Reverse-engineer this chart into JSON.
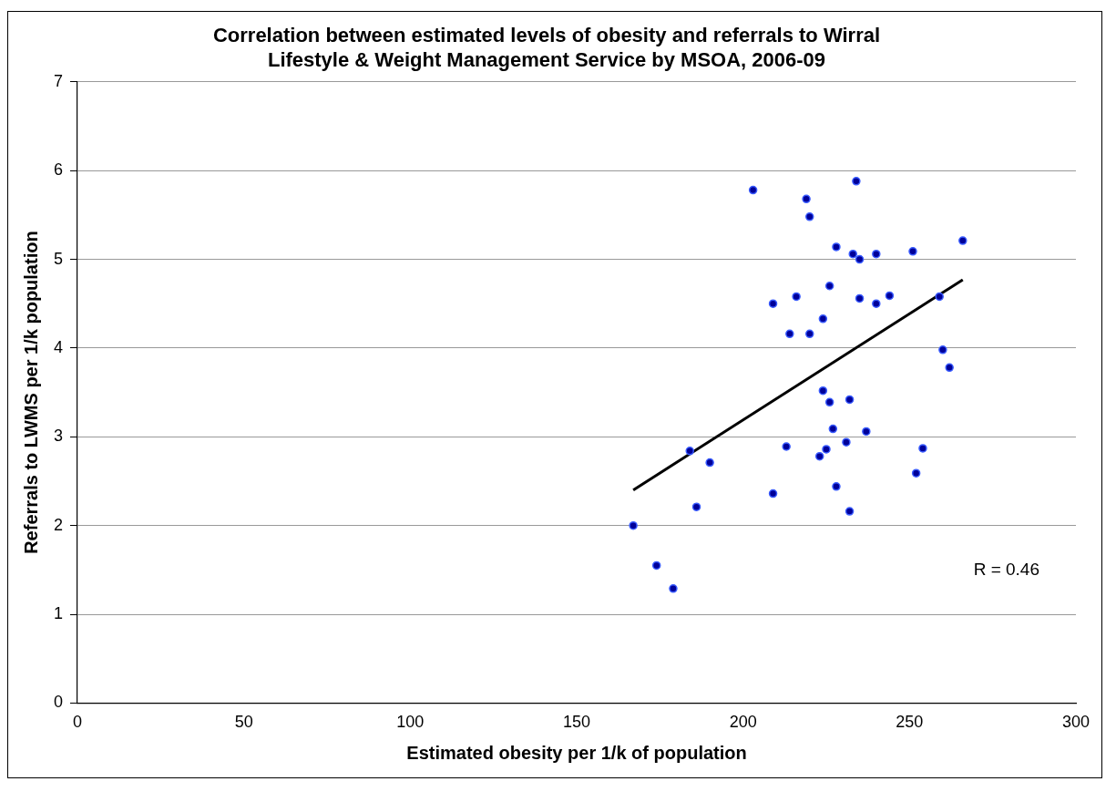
{
  "chart_data": {
    "type": "scatter",
    "title": "Correlation between estimated levels of obesity and referrals to Wirral Lifestyle & Weight Management Service by MSOA, 2006-09",
    "xlabel": "Estimated obesity per 1/k of population",
    "ylabel": "Referrals to LWMS per 1/k population",
    "xlim": [
      0,
      300
    ],
    "xticks": [
      0,
      50,
      100,
      150,
      200,
      250,
      300
    ],
    "ylim": [
      0,
      7
    ],
    "yticks": [
      0,
      1,
      2,
      3,
      4,
      5,
      6,
      7
    ],
    "grid": "y",
    "legend": false,
    "marker": "circle",
    "annotations": [
      "R = 0.46"
    ],
    "series": [
      {
        "color": "#000099",
        "x": [
          203,
          219,
          220,
          234,
          228,
          233,
          235,
          240,
          251,
          266,
          209,
          216,
          226,
          235,
          240,
          244,
          259,
          214,
          220,
          224,
          260,
          262,
          224,
          226,
          232,
          227,
          237,
          231,
          213,
          225,
          223,
          254,
          184,
          190,
          209,
          228,
          252,
          186,
          232,
          167,
          174,
          179
        ],
        "values": [
          5.78,
          5.68,
          5.48,
          5.88,
          5.14,
          5.06,
          5.0,
          5.06,
          5.09,
          5.21,
          4.5,
          4.58,
          4.7,
          4.56,
          4.5,
          4.59,
          4.58,
          4.16,
          4.16,
          4.33,
          3.98,
          3.78,
          3.52,
          3.39,
          3.42,
          3.09,
          3.06,
          2.94,
          2.89,
          2.86,
          2.78,
          2.87,
          2.84,
          2.71,
          2.36,
          2.44,
          2.59,
          2.21,
          2.16,
          2.0,
          1.55,
          1.29
        ]
      },
      {
        "type": "line",
        "color": "#000000",
        "marker": "none",
        "x": [
          167,
          266
        ],
        "values": [
          2.4,
          4.77
        ]
      }
    ]
  }
}
